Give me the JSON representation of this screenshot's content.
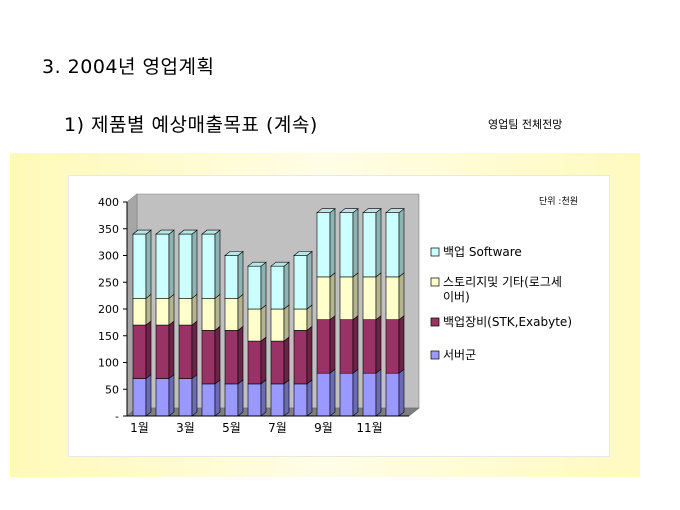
{
  "slide": {
    "heading": "3. 2004년 영업계획",
    "subheading": "1) 제품별 예상매출목표 (계속)",
    "subnote": "영업팀 전체전망"
  },
  "chart_data": {
    "type": "bar",
    "stacked": true,
    "three_d": true,
    "unit_note": "단위 :천원",
    "categories": [
      "1월",
      "2월",
      "3월",
      "4월",
      "5월",
      "6월",
      "7월",
      "8월",
      "9월",
      "10월",
      "11월",
      "12월"
    ],
    "tick_labels": [
      "1월",
      "",
      "3월",
      "",
      "5월",
      "",
      "7월",
      "",
      "9월",
      "",
      "11월",
      ""
    ],
    "ylim": [
      0,
      400
    ],
    "yticks": [
      0,
      50,
      100,
      150,
      200,
      250,
      300,
      350,
      400
    ],
    "ytick_labels": [
      "-",
      "50",
      "100",
      "150",
      "200",
      "250",
      "300",
      "350",
      "400"
    ],
    "grid": false,
    "legend_position": "right",
    "series": [
      {
        "name": "서버군",
        "color": "#9999ff",
        "values": [
          70,
          70,
          70,
          60,
          60,
          60,
          60,
          60,
          80,
          80,
          80,
          80
        ]
      },
      {
        "name": "백업장비(STK,Exabyte)",
        "color": "#993366",
        "values": [
          100,
          100,
          100,
          100,
          100,
          80,
          80,
          100,
          100,
          100,
          100,
          100
        ]
      },
      {
        "name": "스토리지및 기타(로그세이버)",
        "color": "#ffffcc",
        "values": [
          50,
          50,
          50,
          60,
          60,
          60,
          60,
          40,
          80,
          80,
          80,
          80
        ]
      },
      {
        "name": "백업 Software",
        "color": "#ccffff",
        "values": [
          120,
          120,
          120,
          120,
          80,
          80,
          80,
          100,
          120,
          120,
          120,
          120
        ]
      }
    ]
  }
}
